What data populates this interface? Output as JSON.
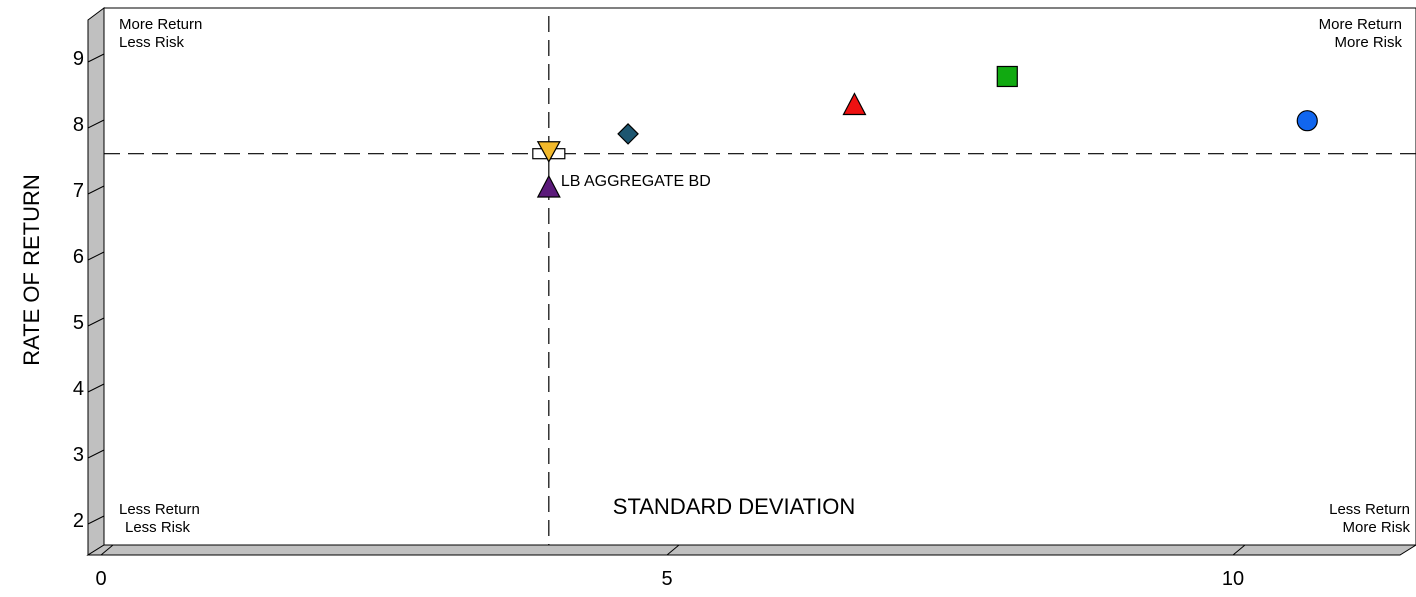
{
  "chart_data": {
    "type": "scatter",
    "title": "",
    "xlabel": "STANDARD DEVIATION",
    "ylabel": "RATE OF RETURN",
    "xlim": [
      0,
      11.5
    ],
    "ylim": [
      1.4,
      9.6
    ],
    "xticks": [
      0,
      5,
      10
    ],
    "yticks": [
      2,
      3,
      4,
      5,
      6,
      7,
      8,
      9
    ],
    "grid": false,
    "reference_lines": {
      "x": 3.85,
      "y": 7.55
    },
    "quadrant_labels": {
      "top_left": [
        "More Return",
        "Less Risk"
      ],
      "top_right": [
        "More Return",
        "More Risk"
      ],
      "bottom_left": [
        "Less Return",
        "Less Risk"
      ],
      "bottom_right": [
        "Less Return",
        "More Risk"
      ]
    },
    "points": [
      {
        "x": 3.85,
        "y": 7.55,
        "marker": "rect-open",
        "color": "#ffffff",
        "label": ""
      },
      {
        "x": 3.85,
        "y": 7.58,
        "marker": "triangle-down",
        "color": "#f2b92b",
        "label": ""
      },
      {
        "x": 3.85,
        "y": 7.03,
        "marker": "triangle-up",
        "color": "#5b1a7a",
        "label": "LB AGGREGATE BD"
      },
      {
        "x": 4.55,
        "y": 7.85,
        "marker": "diamond",
        "color": "#1d5670",
        "label": ""
      },
      {
        "x": 6.55,
        "y": 8.28,
        "marker": "triangle-up",
        "color": "#ee1111",
        "label": ""
      },
      {
        "x": 7.9,
        "y": 8.72,
        "marker": "square",
        "color": "#11aa11",
        "label": ""
      },
      {
        "x": 10.55,
        "y": 8.05,
        "marker": "circle",
        "color": "#1166ee",
        "label": ""
      }
    ]
  }
}
